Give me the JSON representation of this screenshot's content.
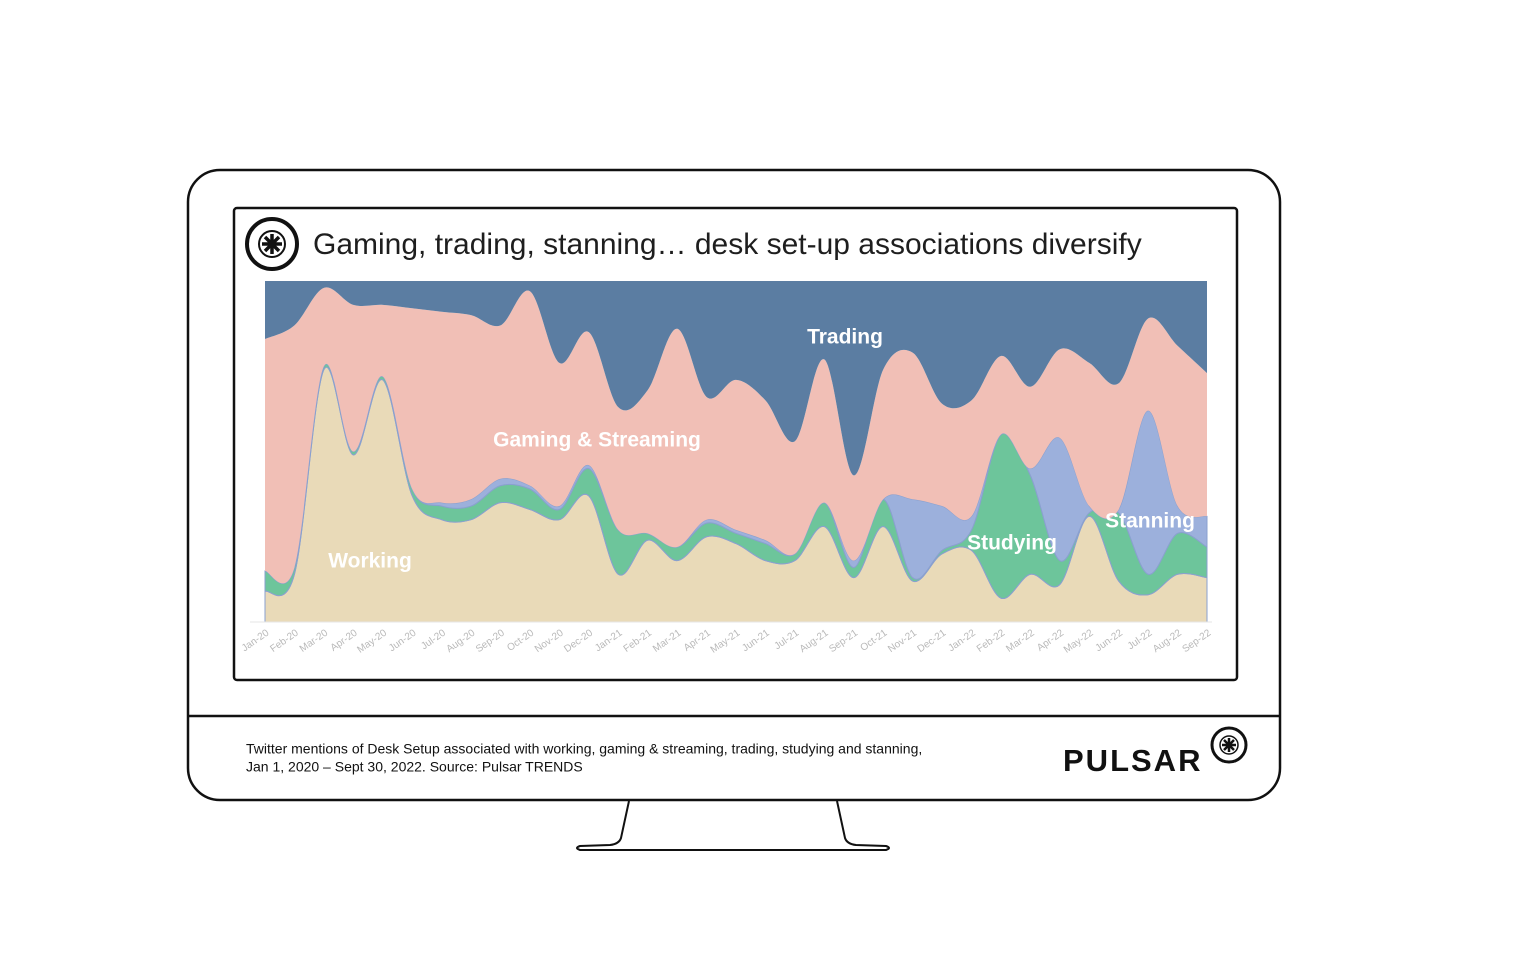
{
  "chart_data": {
    "type": "stacked-area",
    "title": "Gaming, trading, stanning… desk set-up associations diversify",
    "categories": [
      "Jan-20",
      "Feb-20",
      "Mar-20",
      "Apr-20",
      "May-20",
      "Jun-20",
      "Jul-20",
      "Aug-20",
      "Sep-20",
      "Oct-20",
      "Nov-20",
      "Dec-20",
      "Jan-21",
      "Feb-21",
      "Mar-21",
      "Apr-21",
      "May-21",
      "Jun-21",
      "Jul-21",
      "Aug-21",
      "Sep-21",
      "Oct-21",
      "Nov-21",
      "Dec-21",
      "Jan-22",
      "Feb-22",
      "Mar-22",
      "Apr-22",
      "May-22",
      "Jun-22",
      "Jul-22",
      "Aug-22",
      "Sep-22"
    ],
    "series": [
      {
        "name": "Working",
        "color": "#e9dab8",
        "values": [
          9,
          14,
          74,
          49,
          71,
          37,
          30,
          30,
          35,
          33,
          30,
          37,
          14,
          24,
          18,
          25,
          23,
          18,
          18,
          28,
          13,
          28,
          12,
          20,
          21,
          7,
          14,
          11,
          31,
          12,
          8,
          14,
          13
        ]
      },
      {
        "name": "Studying",
        "color": "#6dc59b",
        "values": [
          6,
          2,
          1,
          1,
          1,
          2,
          4,
          4,
          5,
          6,
          3,
          8,
          13,
          2,
          4,
          4,
          3,
          5,
          2,
          7,
          3,
          8,
          1,
          1,
          6,
          48,
          29,
          7,
          1,
          20,
          6,
          12,
          9
        ]
      },
      {
        "name": "Stanning",
        "color": "#9cb0dc",
        "values": [
          0,
          0,
          0,
          0,
          0,
          0,
          1,
          2,
          2,
          1,
          1,
          1,
          0,
          0,
          0,
          1,
          1,
          1,
          0,
          0,
          2,
          0,
          23,
          13,
          4,
          0,
          2,
          36,
          2,
          1,
          48,
          8,
          9
        ]
      },
      {
        "name": "Gaming & Streaming",
        "color": "#f1bfb6",
        "values": [
          68,
          71,
          23,
          43,
          21,
          53,
          56,
          54,
          45,
          57,
          42,
          39,
          36,
          42,
          64,
          36,
          44,
          41,
          33,
          42,
          25,
          38,
          43,
          30,
          34,
          23,
          24,
          26,
          42,
          37,
          27,
          47,
          42
        ]
      },
      {
        "name": "Trading",
        "color": "#5b7da2",
        "values": [
          17,
          13,
          2,
          7,
          7,
          8,
          9,
          10,
          13,
          3,
          24,
          15,
          37,
          32,
          14,
          34,
          29,
          35,
          47,
          23,
          57,
          26,
          21,
          36,
          35,
          22,
          31,
          20,
          24,
          30,
          11,
          19,
          27
        ]
      }
    ],
    "caption": [
      "Twitter mentions of Desk Setup associated with working, gaming & streaming, trading, studying and stanning,",
      "Jan 1, 2020 – Sept 30, 2022. Source: Pulsar TRENDS"
    ],
    "brand": "PULSAR"
  }
}
